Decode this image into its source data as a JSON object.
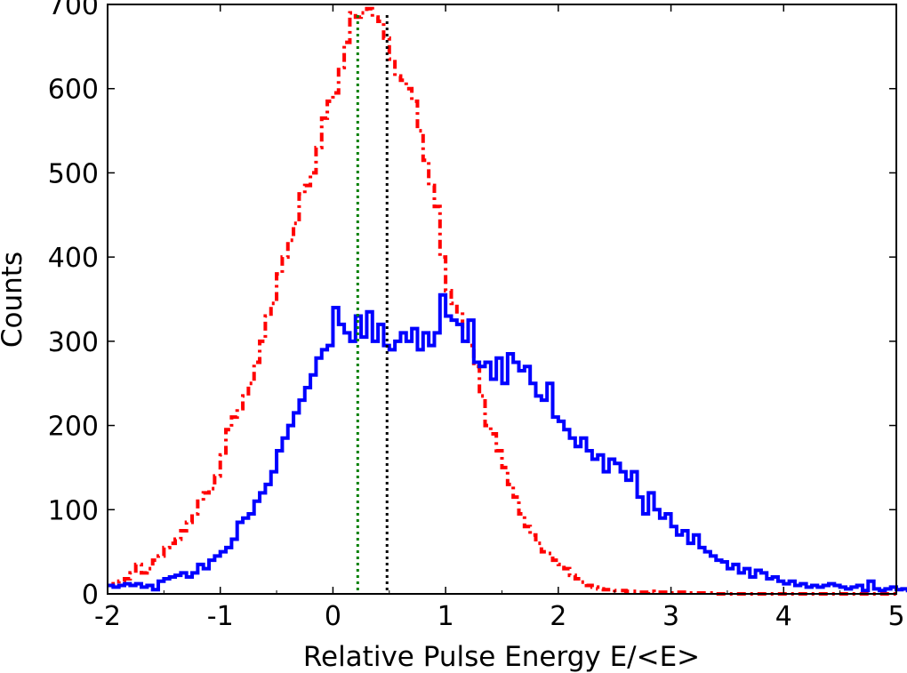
{
  "chart_data": {
    "type": "histogram-step",
    "xlabel": "Relative Pulse Energy E/<E>",
    "ylabel": "Counts",
    "xlim": [
      -2,
      5
    ],
    "ylim": [
      0,
      700
    ],
    "xticks": [
      "-2",
      "-1",
      "0",
      "1",
      "2",
      "3",
      "4",
      "5"
    ],
    "yticks": [
      "0",
      "100",
      "200",
      "300",
      "400",
      "500",
      "600",
      "700"
    ],
    "grid": false,
    "legend": "none",
    "bin_width": 0.05,
    "x_start": -2.0,
    "series": [
      {
        "style": "dashdot",
        "color": "#ff0000",
        "values": [
          10,
          12,
          15,
          18,
          25,
          35,
          25,
          30,
          40,
          45,
          55,
          60,
          65,
          75,
          85,
          95,
          110,
          120,
          125,
          140,
          165,
          195,
          210,
          220,
          235,
          250,
          275,
          300,
          330,
          345,
          380,
          400,
          420,
          440,
          475,
          485,
          500,
          530,
          565,
          585,
          595,
          625,
          655,
          690,
          685,
          690,
          695,
          685,
          680,
          660,
          635,
          615,
          610,
          600,
          585,
          550,
          515,
          485,
          460,
          400,
          360,
          345,
          335,
          315,
          295,
          270,
          235,
          200,
          190,
          170,
          150,
          130,
          115,
          95,
          80,
          70,
          60,
          50,
          48,
          40,
          35,
          30,
          22,
          18,
          14,
          10,
          8,
          6,
          5,
          5,
          4,
          4,
          3,
          3,
          2,
          2,
          3,
          2,
          2,
          2,
          1,
          2,
          2,
          1,
          1,
          1,
          1,
          1,
          0,
          0,
          0,
          0,
          0,
          0,
          0,
          0,
          0,
          0,
          0,
          0,
          0,
          0,
          0,
          0,
          0,
          0,
          0,
          0,
          0,
          0,
          0,
          0,
          0,
          0,
          0,
          0,
          0,
          0,
          0,
          0
        ]
      },
      {
        "style": "solid",
        "color": "#0000ff",
        "values": [
          10,
          8,
          10,
          12,
          10,
          12,
          8,
          10,
          5,
          15,
          18,
          20,
          22,
          25,
          20,
          25,
          35,
          30,
          40,
          45,
          50,
          55,
          65,
          85,
          90,
          95,
          110,
          120,
          130,
          145,
          170,
          185,
          200,
          215,
          230,
          245,
          260,
          280,
          290,
          295,
          340,
          320,
          310,
          300,
          330,
          305,
          335,
          300,
          320,
          295,
          290,
          300,
          310,
          300,
          315,
          290,
          310,
          295,
          310,
          355,
          330,
          325,
          320,
          300,
          325,
          275,
          270,
          275,
          255,
          280,
          250,
          285,
          275,
          265,
          270,
          250,
          235,
          230,
          250,
          210,
          205,
          195,
          185,
          175,
          185,
          170,
          160,
          165,
          145,
          160,
          155,
          145,
          135,
          145,
          115,
          95,
          120,
          100,
          90,
          95,
          80,
          70,
          75,
          60,
          70,
          55,
          50,
          45,
          40,
          38,
          30,
          35,
          25,
          30,
          20,
          28,
          25,
          18,
          20,
          15,
          12,
          15,
          10,
          12,
          8,
          10,
          8,
          10,
          12,
          10,
          8,
          6,
          8,
          10,
          4,
          15,
          6,
          4,
          6,
          8,
          5,
          6,
          4,
          3
        ]
      }
    ],
    "vlines": [
      {
        "x": 0.22,
        "color": "#008000",
        "style": "dotted"
      },
      {
        "x": 0.48,
        "color": "#000000",
        "style": "dotted"
      }
    ]
  }
}
